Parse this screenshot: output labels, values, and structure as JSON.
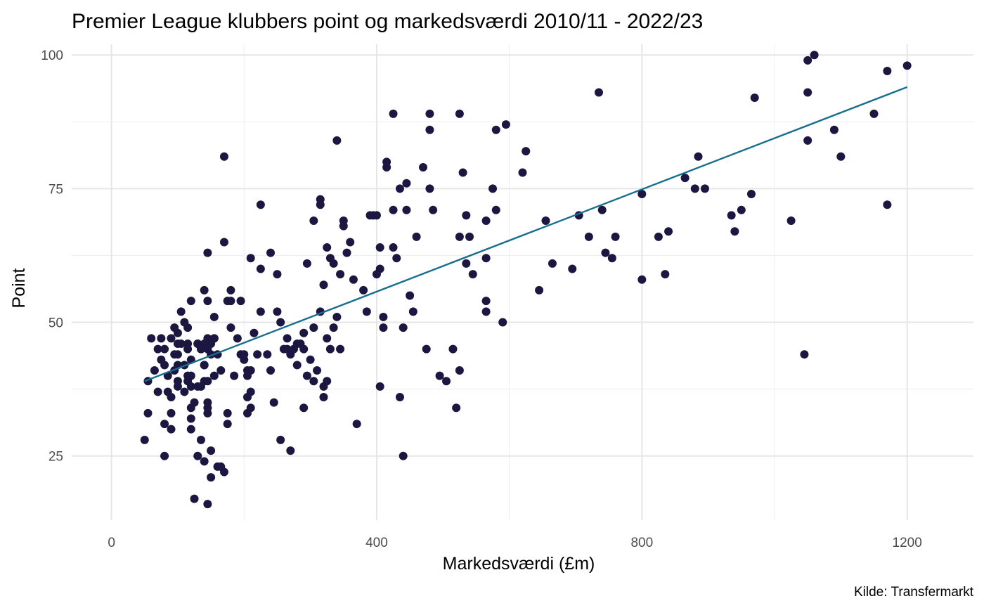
{
  "chart_data": {
    "type": "scatter",
    "title": "Premier League klubbers point og markedsværdi 2010/11 - 2022/23",
    "xlabel": "Markedsværdi (£m)",
    "ylabel": "Point",
    "caption": "Kilde: Transfermarkt",
    "xlim": [
      -60,
      1300
    ],
    "ylim": [
      13,
      102
    ],
    "x_ticks": [
      0,
      400,
      800,
      1200
    ],
    "y_ticks": [
      25,
      50,
      75,
      100
    ],
    "grid": true,
    "colors": {
      "points": "#1b1740",
      "trend": "#176e8e"
    },
    "trend_line": {
      "x": [
        50,
        1200
      ],
      "y": [
        39,
        94
      ]
    },
    "points": [
      [
        50,
        28
      ],
      [
        55,
        39
      ],
      [
        55,
        33
      ],
      [
        60,
        47
      ],
      [
        65,
        41
      ],
      [
        70,
        45
      ],
      [
        70,
        37
      ],
      [
        75,
        47
      ],
      [
        75,
        43
      ],
      [
        80,
        25
      ],
      [
        80,
        31
      ],
      [
        80,
        42
      ],
      [
        80,
        45
      ],
      [
        85,
        40
      ],
      [
        85,
        37
      ],
      [
        90,
        47
      ],
      [
        90,
        30
      ],
      [
        90,
        33
      ],
      [
        90,
        36
      ],
      [
        95,
        41
      ],
      [
        95,
        44
      ],
      [
        95,
        49
      ],
      [
        100,
        42
      ],
      [
        100,
        48
      ],
      [
        100,
        44
      ],
      [
        100,
        39
      ],
      [
        100,
        46
      ],
      [
        100,
        38
      ],
      [
        105,
        52
      ],
      [
        105,
        46
      ],
      [
        110,
        42
      ],
      [
        110,
        50
      ],
      [
        110,
        37
      ],
      [
        115,
        46
      ],
      [
        115,
        45
      ],
      [
        115,
        49
      ],
      [
        115,
        40
      ],
      [
        115,
        39
      ],
      [
        120,
        54
      ],
      [
        120,
        43
      ],
      [
        120,
        38
      ],
      [
        120,
        34
      ],
      [
        120,
        30
      ],
      [
        120,
        32
      ],
      [
        120,
        40
      ],
      [
        125,
        35
      ],
      [
        125,
        17
      ],
      [
        130,
        46
      ],
      [
        130,
        25
      ],
      [
        130,
        46
      ],
      [
        130,
        38
      ],
      [
        135,
        45
      ],
      [
        135,
        45
      ],
      [
        135,
        38
      ],
      [
        135,
        28
      ],
      [
        140,
        56
      ],
      [
        140,
        42
      ],
      [
        140,
        46
      ],
      [
        140,
        24
      ],
      [
        140,
        39
      ],
      [
        140,
        42
      ],
      [
        145,
        45
      ],
      [
        145,
        47
      ],
      [
        145,
        35
      ],
      [
        145,
        33
      ],
      [
        145,
        34
      ],
      [
        145,
        63
      ],
      [
        145,
        54
      ],
      [
        145,
        39
      ],
      [
        145,
        16
      ],
      [
        150,
        44
      ],
      [
        150,
        26
      ],
      [
        150,
        46
      ],
      [
        150,
        21
      ],
      [
        155,
        51
      ],
      [
        155,
        40
      ],
      [
        155,
        47
      ],
      [
        155,
        47
      ],
      [
        160,
        23
      ],
      [
        160,
        44
      ],
      [
        165,
        41
      ],
      [
        165,
        23
      ],
      [
        170,
        65
      ],
      [
        170,
        81
      ],
      [
        170,
        22
      ],
      [
        175,
        54
      ],
      [
        175,
        33
      ],
      [
        175,
        31
      ],
      [
        180,
        56
      ],
      [
        180,
        54
      ],
      [
        180,
        49
      ],
      [
        185,
        40
      ],
      [
        190,
        47
      ],
      [
        195,
        54
      ],
      [
        195,
        44
      ],
      [
        200,
        44
      ],
      [
        200,
        43
      ],
      [
        205,
        33
      ],
      [
        205,
        41
      ],
      [
        205,
        36
      ],
      [
        205,
        40
      ],
      [
        210,
        37
      ],
      [
        210,
        34
      ],
      [
        210,
        41
      ],
      [
        210,
        62
      ],
      [
        215,
        48
      ],
      [
        220,
        44
      ],
      [
        225,
        72
      ],
      [
        225,
        60
      ],
      [
        225,
        52
      ],
      [
        235,
        44
      ],
      [
        240,
        63
      ],
      [
        240,
        41
      ],
      [
        245,
        35
      ],
      [
        250,
        52
      ],
      [
        250,
        59
      ],
      [
        255,
        50
      ],
      [
        255,
        28
      ],
      [
        260,
        45
      ],
      [
        265,
        47
      ],
      [
        265,
        45
      ],
      [
        270,
        26
      ],
      [
        270,
        44
      ],
      [
        275,
        45
      ],
      [
        280,
        42
      ],
      [
        280,
        46
      ],
      [
        285,
        46
      ],
      [
        290,
        48
      ],
      [
        290,
        34
      ],
      [
        290,
        45
      ],
      [
        295,
        61
      ],
      [
        295,
        40
      ],
      [
        300,
        43
      ],
      [
        305,
        39
      ],
      [
        305,
        49
      ],
      [
        305,
        69
      ],
      [
        310,
        41
      ],
      [
        315,
        52
      ],
      [
        315,
        73
      ],
      [
        315,
        72
      ],
      [
        320,
        38
      ],
      [
        320,
        57
      ],
      [
        320,
        36
      ],
      [
        325,
        64
      ],
      [
        325,
        47
      ],
      [
        325,
        39
      ],
      [
        330,
        62
      ],
      [
        330,
        45
      ],
      [
        335,
        61
      ],
      [
        335,
        49
      ],
      [
        340,
        84
      ],
      [
        340,
        51
      ],
      [
        345,
        59
      ],
      [
        345,
        45
      ],
      [
        350,
        68
      ],
      [
        350,
        69
      ],
      [
        355,
        63
      ],
      [
        360,
        65
      ],
      [
        365,
        58
      ],
      [
        370,
        31
      ],
      [
        380,
        56
      ],
      [
        385,
        52
      ],
      [
        390,
        70
      ],
      [
        395,
        70
      ],
      [
        400,
        59
      ],
      [
        400,
        70
      ],
      [
        405,
        60
      ],
      [
        405,
        64
      ],
      [
        405,
        38
      ],
      [
        410,
        51
      ],
      [
        410,
        49
      ],
      [
        415,
        79
      ],
      [
        415,
        80
      ],
      [
        425,
        89
      ],
      [
        425,
        64
      ],
      [
        425,
        71
      ],
      [
        430,
        62
      ],
      [
        435,
        36
      ],
      [
        435,
        75
      ],
      [
        440,
        49
      ],
      [
        440,
        25
      ],
      [
        445,
        76
      ],
      [
        445,
        71
      ],
      [
        450,
        55
      ],
      [
        455,
        52
      ],
      [
        460,
        66
      ],
      [
        470,
        79
      ],
      [
        475,
        45
      ],
      [
        480,
        75
      ],
      [
        480,
        86
      ],
      [
        480,
        89
      ],
      [
        485,
        71
      ],
      [
        495,
        40
      ],
      [
        505,
        39
      ],
      [
        515,
        45
      ],
      [
        520,
        34
      ],
      [
        525,
        41
      ],
      [
        525,
        89
      ],
      [
        525,
        66
      ],
      [
        530,
        78
      ],
      [
        535,
        70
      ],
      [
        535,
        61
      ],
      [
        540,
        66
      ],
      [
        545,
        59
      ],
      [
        565,
        52
      ],
      [
        565,
        54
      ],
      [
        565,
        62
      ],
      [
        565,
        69
      ],
      [
        575,
        75
      ],
      [
        580,
        71
      ],
      [
        580,
        86
      ],
      [
        590,
        50
      ],
      [
        595,
        87
      ],
      [
        620,
        78
      ],
      [
        625,
        82
      ],
      [
        645,
        56
      ],
      [
        655,
        69
      ],
      [
        665,
        61
      ],
      [
        695,
        60
      ],
      [
        705,
        70
      ],
      [
        720,
        66
      ],
      [
        740,
        71
      ],
      [
        735,
        93
      ],
      [
        745,
        63
      ],
      [
        755,
        62
      ],
      [
        760,
        66
      ],
      [
        800,
        74
      ],
      [
        800,
        58
      ],
      [
        825,
        66
      ],
      [
        835,
        59
      ],
      [
        840,
        67
      ],
      [
        865,
        77
      ],
      [
        880,
        75
      ],
      [
        885,
        81
      ],
      [
        895,
        75
      ],
      [
        935,
        70
      ],
      [
        940,
        67
      ],
      [
        950,
        71
      ],
      [
        965,
        74
      ],
      [
        970,
        92
      ],
      [
        1025,
        69
      ],
      [
        1045,
        44
      ],
      [
        1050,
        93
      ],
      [
        1050,
        99
      ],
      [
        1050,
        84
      ],
      [
        1060,
        100
      ],
      [
        1090,
        86
      ],
      [
        1100,
        81
      ],
      [
        1150,
        89
      ],
      [
        1170,
        72
      ],
      [
        1170,
        97
      ],
      [
        1200,
        98
      ]
    ]
  }
}
